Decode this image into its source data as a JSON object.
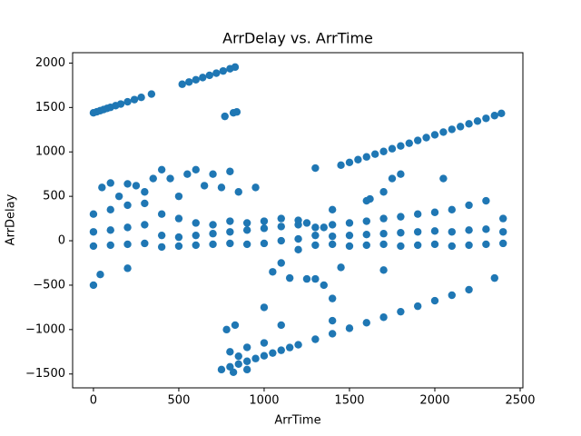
{
  "chart_data": {
    "type": "scatter",
    "title": "ArrDelay vs. ArrTime",
    "x_label": "ArrTime",
    "y_label": "ArrDelay",
    "color": "#1f77b4",
    "grid": false,
    "xlim": [
      -122,
      2516
    ],
    "ylim": [
      -1656,
      2117
    ],
    "xticks": [
      0,
      500,
      1000,
      1500,
      2000,
      2500
    ],
    "yticks": [
      {
        "value": -1500,
        "label": "−1500"
      },
      {
        "value": -1000,
        "label": "−1000"
      },
      {
        "value": -500,
        "label": "−500"
      },
      0,
      500,
      1000,
      1500,
      2000
    ],
    "x": [
      0,
      20,
      40,
      60,
      80,
      100,
      130,
      160,
      200,
      240,
      280,
      340,
      520,
      560,
      600,
      640,
      680,
      720,
      760,
      800,
      830,
      770,
      820,
      840,
      1300,
      1450,
      1500,
      1550,
      1600,
      1650,
      1700,
      1750,
      1800,
      1850,
      1900,
      1950,
      2000,
      2050,
      2100,
      2150,
      2200,
      2250,
      2300,
      2350,
      2390,
      750,
      800,
      850,
      900,
      950,
      1000,
      1050,
      1100,
      1150,
      1200,
      1300,
      1400,
      1500,
      1600,
      1700,
      1800,
      1900,
      2000,
      2100,
      2200,
      2350,
      800,
      850,
      900,
      1000,
      780,
      830,
      1000,
      1100,
      1400,
      820,
      900,
      0,
      0,
      0,
      100,
      100,
      100,
      200,
      200,
      200,
      300,
      300,
      300,
      400,
      400,
      400,
      500,
      500,
      500,
      600,
      600,
      600,
      700,
      700,
      700,
      800,
      800,
      800,
      900,
      900,
      900,
      1000,
      1000,
      1000,
      1100,
      1100,
      1100,
      1200,
      1200,
      1200,
      1300,
      1300,
      1300,
      1400,
      1400,
      1400,
      1500,
      1500,
      1500,
      1600,
      1600,
      1600,
      1700,
      1700,
      1700,
      1800,
      1800,
      1800,
      1900,
      1900,
      1900,
      2000,
      2000,
      2000,
      2100,
      2100,
      2100,
      2200,
      2200,
      2200,
      2300,
      2300,
      2300,
      2400,
      2400,
      2400,
      0,
      40,
      200,
      50,
      100,
      150,
      200,
      250,
      300,
      350,
      400,
      450,
      500,
      550,
      600,
      650,
      700,
      750,
      800,
      850,
      950,
      1050,
      1100,
      1150,
      1200,
      1250,
      1300,
      1350,
      1400,
      1450,
      1700,
      1750,
      1800,
      2050,
      1600,
      1620,
      1700,
      1250,
      1350,
      1400
    ],
    "values": [
      1440,
      1452,
      1465,
      1477,
      1490,
      1502,
      1521,
      1539,
      1564,
      1589,
      1614,
      1651,
      1762,
      1787,
      1812,
      1837,
      1862,
      1886,
      1911,
      1936,
      1955,
      1400,
      1440,
      1450,
      818,
      851,
      882,
      913,
      944,
      975,
      1005,
      1036,
      1067,
      1098,
      1129,
      1161,
      1192,
      1223,
      1254,
      1285,
      1316,
      1347,
      1378,
      1409,
      1434,
      -1450,
      -1419,
      -1388,
      -1357,
      -1326,
      -1295,
      -1264,
      -1233,
      -1202,
      -1171,
      -1109,
      -1047,
      -985,
      -923,
      -861,
      -799,
      -737,
      -675,
      -613,
      -551,
      -420,
      -1250,
      -1300,
      -1200,
      -1150,
      -1000,
      -950,
      -750,
      -950,
      -900,
      -1480,
      -1450,
      -60,
      100,
      300,
      -50,
      120,
      350,
      -40,
      150,
      400,
      -30,
      180,
      420,
      -70,
      60,
      300,
      -60,
      40,
      250,
      -50,
      60,
      200,
      -40,
      80,
      180,
      -30,
      100,
      220,
      -40,
      120,
      200,
      -30,
      140,
      220,
      0,
      160,
      250,
      20,
      180,
      230,
      -50,
      60,
      150,
      -40,
      50,
      180,
      -60,
      60,
      200,
      -50,
      70,
      220,
      -40,
      80,
      250,
      -60,
      90,
      270,
      -50,
      100,
      300,
      -40,
      110,
      320,
      -60,
      100,
      350,
      -50,
      120,
      400,
      -40,
      130,
      450,
      -30,
      100,
      250,
      -500,
      -380,
      -310,
      600,
      650,
      500,
      640,
      620,
      550,
      700,
      800,
      700,
      500,
      750,
      800,
      620,
      750,
      600,
      780,
      550,
      600,
      -350,
      -250,
      -420,
      -100,
      -430,
      -430,
      -500,
      -650,
      -300,
      -330,
      700,
      750,
      700,
      450,
      470,
      550,
      200,
      150,
      350
    ]
  }
}
